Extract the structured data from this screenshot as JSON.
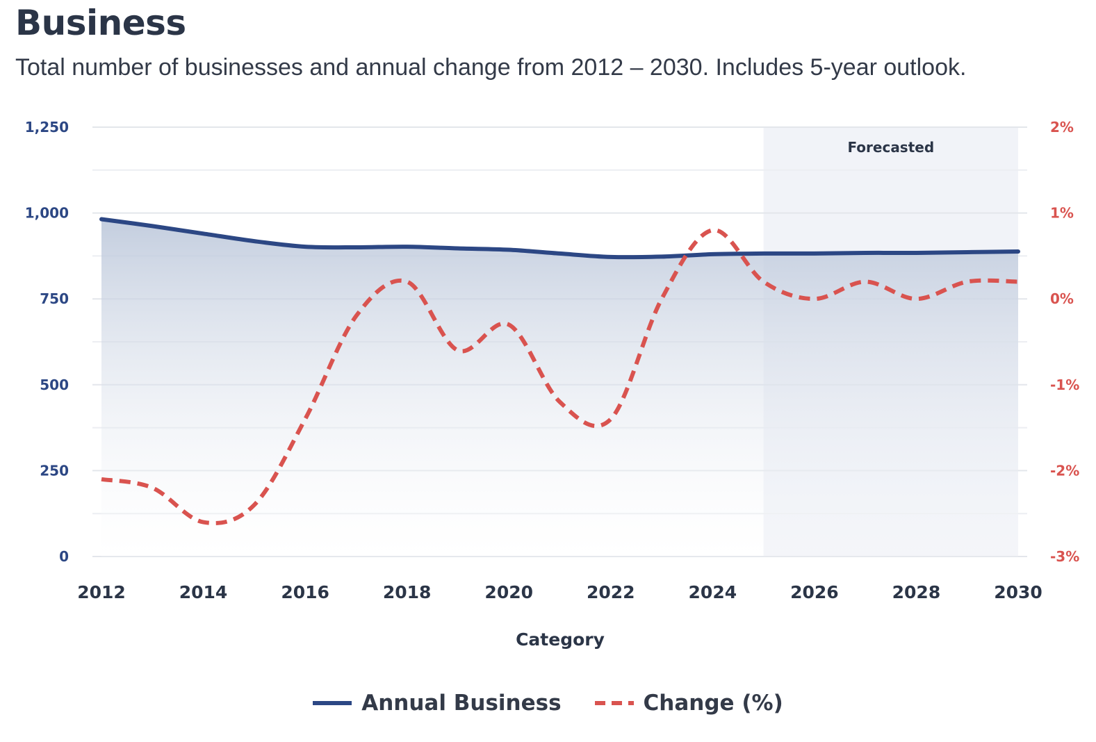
{
  "title": "Business",
  "subtitle": "Total number of businesses and annual change from 2012 – 2030. Includes 5-year outlook.",
  "chart_data": {
    "type": "line",
    "x": [
      2012,
      2013,
      2014,
      2015,
      2016,
      2017,
      2018,
      2019,
      2020,
      2021,
      2022,
      2023,
      2024,
      2025,
      2026,
      2027,
      2028,
      2029,
      2030
    ],
    "xlabel": "Category",
    "x_tick_labels": [
      "2012",
      "2014",
      "2016",
      "2018",
      "2020",
      "2022",
      "2024",
      "2026",
      "2028",
      "2030"
    ],
    "series": [
      {
        "name": "Annual Business",
        "axis": "left",
        "style": "solid-area",
        "color": "#2c4784",
        "values": [
          982,
          962,
          940,
          918,
          902,
          900,
          902,
          897,
          893,
          882,
          872,
          873,
          880,
          882,
          882,
          884,
          884,
          886,
          888
        ]
      },
      {
        "name": "Change (%)",
        "axis": "right",
        "style": "dashed",
        "color": "#d9534f",
        "values": [
          -2.1,
          -2.2,
          -2.6,
          -2.4,
          -1.4,
          -0.2,
          0.2,
          -0.6,
          -0.3,
          -1.2,
          -1.4,
          0.0,
          0.8,
          0.2,
          0.0,
          0.2,
          0.0,
          0.2,
          0.2
        ]
      }
    ],
    "y_left": {
      "ylim": [
        0,
        1250
      ],
      "tick_labels": [
        "1,250",
        "1,000",
        "750",
        "500",
        "250",
        "0"
      ],
      "tick_values": [
        1250,
        1000,
        750,
        500,
        250,
        0
      ],
      "color": "#2c4784"
    },
    "y_right": {
      "ylim": [
        -3,
        2
      ],
      "tick_labels": [
        "2%",
        "1%",
        "0%",
        "-1%",
        "-2%",
        "-3%"
      ],
      "tick_values": [
        2,
        1,
        0,
        -1,
        -2,
        -3
      ],
      "color": "#d9534f"
    },
    "forecast": {
      "label": "Forecasted",
      "from": 2025,
      "to": 2030
    },
    "grid": true,
    "legend": "bottom-center"
  }
}
